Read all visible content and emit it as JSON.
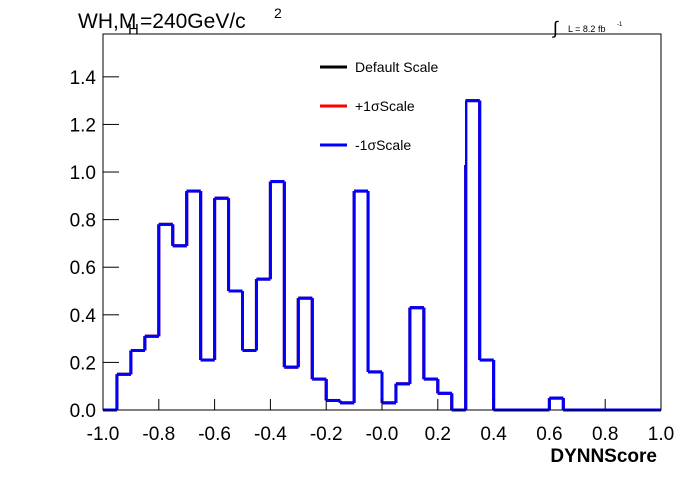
{
  "chart_data": {
    "type": "histogram",
    "title": {
      "main": "WH,M",
      "sub": "H",
      "rest": "=240GeV/c",
      "sup": "2"
    },
    "annotation": {
      "integral": "∫",
      "text": "L = 8.2 fb",
      "sup": "-1"
    },
    "x_label": "DYNNScore",
    "bins": [
      -1.0,
      -0.95,
      -0.9,
      -0.85,
      -0.8,
      -0.75,
      -0.7,
      -0.65,
      -0.6,
      -0.55,
      -0.5,
      -0.45,
      -0.4,
      -0.35,
      -0.3,
      -0.25,
      -0.2,
      -0.15,
      -0.1,
      -0.05,
      0.0,
      0.05,
      0.1,
      0.15,
      0.2,
      0.25,
      0.3,
      0.35,
      0.4,
      0.45,
      0.5,
      0.55,
      0.6,
      0.65,
      0.7,
      0.75,
      0.8,
      0.85,
      0.9,
      0.95,
      1.0
    ],
    "series": [
      {
        "name": "Default Scale",
        "color": "#000000",
        "values": [
          0,
          0.15,
          0.25,
          0.31,
          0.78,
          0.69,
          0.92,
          0.21,
          0.89,
          0.5,
          0.25,
          0.55,
          0.96,
          0.18,
          0.47,
          0.13,
          0.04,
          0.03,
          0.92,
          0.16,
          0.03,
          0.11,
          0.43,
          0.13,
          0.07,
          0,
          1.3,
          0.21,
          0,
          0,
          0,
          0,
          0.05,
          0,
          0,
          0,
          0,
          0,
          0,
          0
        ]
      },
      {
        "name": "+1σScale",
        "color": "#ff0000",
        "values": [
          0,
          0.15,
          0.25,
          0.31,
          0.78,
          0.69,
          0.92,
          0.21,
          0.89,
          0.5,
          0.25,
          0.55,
          0.96,
          0.18,
          0.47,
          0.13,
          0.04,
          0.03,
          0.92,
          0.16,
          0.03,
          0.11,
          0.43,
          0.13,
          0.07,
          0,
          1.3,
          0.21,
          0,
          0,
          0,
          0,
          0.05,
          0,
          0,
          0,
          0,
          0,
          0,
          0
        ]
      },
      {
        "name": "-1σScale",
        "color": "#0000ff",
        "values": [
          0,
          0.15,
          0.25,
          0.31,
          0.78,
          0.69,
          0.92,
          0.21,
          0.89,
          0.5,
          0.25,
          0.55,
          0.96,
          0.18,
          0.47,
          0.13,
          0.04,
          0.03,
          0.92,
          0.16,
          0.03,
          0.11,
          0.43,
          0.13,
          0.07,
          0,
          1.3,
          0.21,
          0,
          0,
          0,
          0,
          0.05,
          0,
          0,
          0,
          0,
          0,
          0,
          0
        ]
      }
    ],
    "xlim": [
      -1.0,
      1.0
    ],
    "xticks": [
      {
        "value": -1.0,
        "label": "-1.0"
      },
      -0.8,
      -0.6,
      -0.4,
      -0.2,
      {
        "value": 0,
        "label": "-0.0"
      },
      0.2,
      0.4,
      0.6,
      0.8,
      {
        "value": 1.0,
        "label": "1.0"
      }
    ],
    "ylim": [
      0,
      1.58
    ],
    "yticks": [
      {
        "value": 0,
        "label": "0.0"
      },
      0.2,
      0.4,
      0.6,
      0.8,
      {
        "value": 1.0,
        "label": "1.0"
      },
      1.2,
      1.4
    ],
    "grid": false
  }
}
